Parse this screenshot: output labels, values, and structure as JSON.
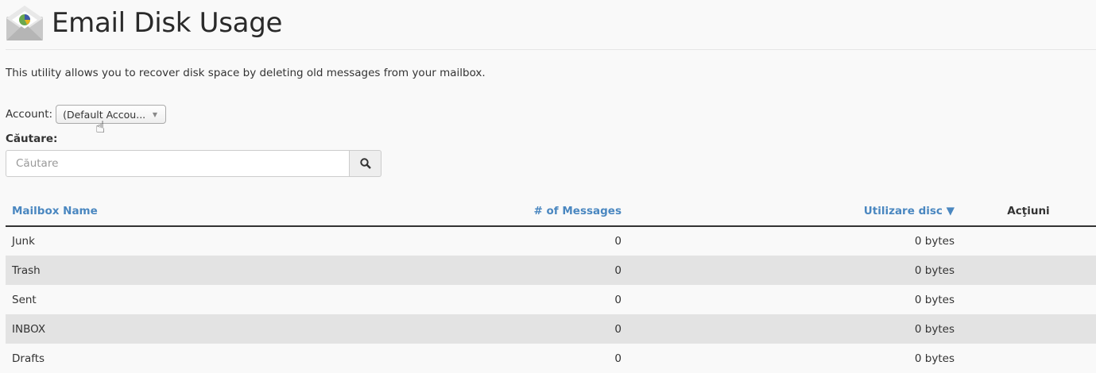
{
  "header": {
    "title": "Email Disk Usage",
    "icon": "email-pie-icon"
  },
  "description": "This utility allows you to recover disk space by deleting old messages from your mailbox.",
  "account": {
    "label": "Account:",
    "selected": "(Default Accou..."
  },
  "search": {
    "label": "Căutare:",
    "placeholder": "Căutare"
  },
  "table": {
    "headers": {
      "name": "Mailbox Name",
      "messages": "# of Messages",
      "usage": "Utilizare disc ▼",
      "actions": "Acţiuni"
    },
    "rows": [
      {
        "name": "Junk",
        "messages": "0",
        "usage": "0 bytes"
      },
      {
        "name": "Trash",
        "messages": "0",
        "usage": "0 bytes"
      },
      {
        "name": "Sent",
        "messages": "0",
        "usage": "0 bytes"
      },
      {
        "name": "INBOX",
        "messages": "0",
        "usage": "0 bytes"
      },
      {
        "name": "Drafts",
        "messages": "0",
        "usage": "0 bytes"
      }
    ]
  },
  "colors": {
    "link": "#4a87c0",
    "row_alt": "#e3e3e3"
  }
}
